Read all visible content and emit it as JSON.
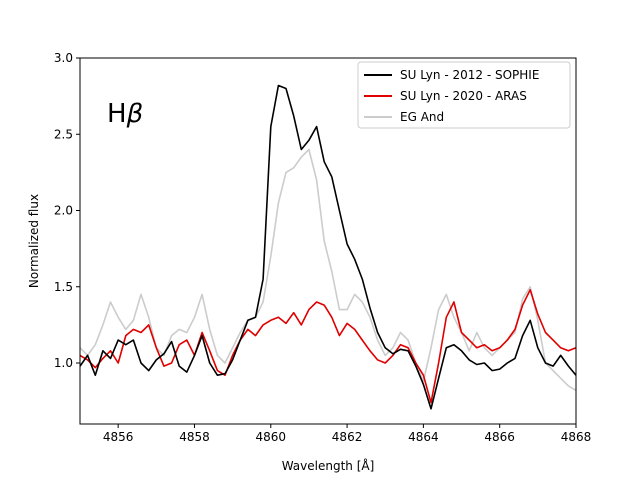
{
  "chart_data": {
    "type": "line",
    "title": "",
    "xlabel": "Wavelength [Å]",
    "ylabel": "Normalized flux",
    "xlim": [
      4855,
      4868
    ],
    "ylim": [
      0.6,
      3.0
    ],
    "xticks": [
      4856,
      4858,
      4860,
      4862,
      4864,
      4866,
      4868
    ],
    "xtick_labels": [
      "4856",
      "4858",
      "4860",
      "4862",
      "4864",
      "4866",
      "4868"
    ],
    "yticks": [
      1.0,
      1.5,
      2.0,
      2.5,
      3.0
    ],
    "ytick_labels": [
      "1.0",
      "1.5",
      "2.0",
      "2.5",
      "3.0"
    ],
    "grid": false,
    "legend_position": "top-right",
    "annotation": {
      "base": "H",
      "greek": "β"
    },
    "series": [
      {
        "name": "SU Lyn - 2012 - SOPHIE",
        "color": "#000000",
        "x": [
          4855.0,
          4855.2,
          4855.4,
          4855.6,
          4855.8,
          4856.0,
          4856.2,
          4856.4,
          4856.6,
          4856.8,
          4857.0,
          4857.2,
          4857.4,
          4857.6,
          4857.8,
          4858.0,
          4858.2,
          4858.4,
          4858.6,
          4858.8,
          4859.0,
          4859.2,
          4859.4,
          4859.6,
          4859.8,
          4860.0,
          4860.2,
          4860.4,
          4860.6,
          4860.8,
          4861.0,
          4861.2,
          4861.4,
          4861.6,
          4861.8,
          4862.0,
          4862.2,
          4862.4,
          4862.6,
          4862.8,
          4863.0,
          4863.2,
          4863.4,
          4863.6,
          4863.8,
          4864.0,
          4864.2,
          4864.4,
          4864.6,
          4864.8,
          4865.0,
          4865.2,
          4865.4,
          4865.6,
          4865.8,
          4866.0,
          4866.2,
          4866.4,
          4866.6,
          4866.8,
          4867.0,
          4867.2,
          4867.4,
          4867.6,
          4867.8,
          4868.0
        ],
        "y": [
          0.98,
          1.05,
          0.92,
          1.08,
          1.03,
          1.15,
          1.12,
          1.15,
          1.0,
          0.95,
          1.02,
          1.06,
          1.14,
          0.98,
          0.94,
          1.05,
          1.18,
          1.0,
          0.92,
          0.93,
          1.02,
          1.15,
          1.28,
          1.3,
          1.55,
          2.55,
          2.82,
          2.8,
          2.62,
          2.4,
          2.46,
          2.55,
          2.32,
          2.22,
          2.0,
          1.78,
          1.68,
          1.55,
          1.36,
          1.2,
          1.1,
          1.06,
          1.09,
          1.08,
          0.98,
          0.86,
          0.7,
          0.9,
          1.1,
          1.12,
          1.08,
          1.02,
          0.99,
          1.0,
          0.95,
          0.96,
          1.0,
          1.03,
          1.18,
          1.28,
          1.1,
          1.0,
          0.98,
          1.05,
          0.98,
          0.92
        ]
      },
      {
        "name": "SU Lyn - 2020 - ARAS",
        "color": "#e00000",
        "x": [
          4855.0,
          4855.2,
          4855.4,
          4855.6,
          4855.8,
          4856.0,
          4856.2,
          4856.4,
          4856.6,
          4856.8,
          4857.0,
          4857.2,
          4857.4,
          4857.6,
          4857.8,
          4858.0,
          4858.2,
          4858.4,
          4858.6,
          4858.8,
          4859.0,
          4859.2,
          4859.4,
          4859.6,
          4859.8,
          4860.0,
          4860.2,
          4860.4,
          4860.6,
          4860.8,
          4861.0,
          4861.2,
          4861.4,
          4861.6,
          4861.8,
          4862.0,
          4862.2,
          4862.4,
          4862.6,
          4862.8,
          4863.0,
          4863.2,
          4863.4,
          4863.6,
          4863.8,
          4864.0,
          4864.2,
          4864.4,
          4864.6,
          4864.8,
          4865.0,
          4865.2,
          4865.4,
          4865.6,
          4865.8,
          4866.0,
          4866.2,
          4866.4,
          4866.6,
          4866.8,
          4867.0,
          4867.2,
          4867.4,
          4867.6,
          4867.8,
          4868.0
        ],
        "y": [
          1.05,
          1.02,
          0.97,
          1.03,
          1.08,
          1.0,
          1.18,
          1.22,
          1.2,
          1.25,
          1.1,
          0.98,
          1.0,
          1.12,
          1.15,
          1.05,
          1.2,
          1.08,
          0.95,
          0.92,
          1.05,
          1.15,
          1.22,
          1.18,
          1.25,
          1.28,
          1.3,
          1.26,
          1.33,
          1.25,
          1.35,
          1.4,
          1.38,
          1.3,
          1.18,
          1.26,
          1.22,
          1.15,
          1.08,
          1.02,
          1.0,
          1.05,
          1.12,
          1.1,
          1.0,
          0.92,
          0.74,
          1.0,
          1.3,
          1.4,
          1.2,
          1.15,
          1.1,
          1.12,
          1.08,
          1.1,
          1.15,
          1.22,
          1.38,
          1.48,
          1.32,
          1.2,
          1.15,
          1.1,
          1.08,
          1.1
        ]
      },
      {
        "name": "EG And",
        "color": "#cccccc",
        "x": [
          4855.0,
          4855.2,
          4855.4,
          4855.6,
          4855.8,
          4856.0,
          4856.2,
          4856.4,
          4856.6,
          4856.8,
          4857.0,
          4857.2,
          4857.4,
          4857.6,
          4857.8,
          4858.0,
          4858.2,
          4858.4,
          4858.6,
          4858.8,
          4859.0,
          4859.2,
          4859.4,
          4859.6,
          4859.8,
          4860.0,
          4860.2,
          4860.4,
          4860.6,
          4860.8,
          4861.0,
          4861.2,
          4861.4,
          4861.6,
          4861.8,
          4862.0,
          4862.2,
          4862.4,
          4862.6,
          4862.8,
          4863.0,
          4863.2,
          4863.4,
          4863.6,
          4863.8,
          4864.0,
          4864.2,
          4864.4,
          4864.6,
          4864.8,
          4865.0,
          4865.2,
          4865.4,
          4865.6,
          4865.8,
          4866.0,
          4866.2,
          4866.4,
          4866.6,
          4866.8,
          4867.0,
          4867.2,
          4867.4,
          4867.6,
          4867.8,
          4868.0
        ],
        "y": [
          1.1,
          1.05,
          1.12,
          1.25,
          1.4,
          1.3,
          1.22,
          1.28,
          1.45,
          1.3,
          1.1,
          1.05,
          1.18,
          1.22,
          1.2,
          1.3,
          1.45,
          1.22,
          1.05,
          1.0,
          1.1,
          1.2,
          1.28,
          1.3,
          1.4,
          1.7,
          2.05,
          2.25,
          2.28,
          2.35,
          2.4,
          2.2,
          1.8,
          1.6,
          1.35,
          1.35,
          1.45,
          1.4,
          1.3,
          1.15,
          1.05,
          1.1,
          1.2,
          1.15,
          1.0,
          0.88,
          1.1,
          1.35,
          1.45,
          1.3,
          1.2,
          1.08,
          1.2,
          1.1,
          1.05,
          1.1,
          1.15,
          1.2,
          1.42,
          1.5,
          1.28,
          1.0,
          0.95,
          0.9,
          0.85,
          0.82
        ]
      }
    ]
  }
}
